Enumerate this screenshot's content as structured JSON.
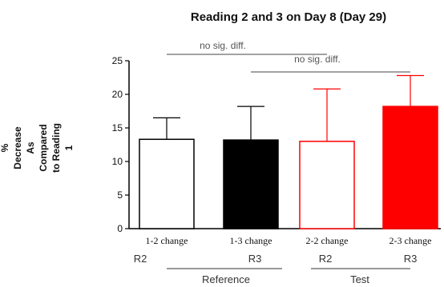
{
  "chart_data": {
    "type": "bar",
    "title": "Reading 2 and 3 on Day 8 (Day 29)",
    "ylabel_lines": [
      "%",
      "Decrease",
      "As",
      "Compared",
      "to Reading",
      "1"
    ],
    "ylim": [
      0,
      25
    ],
    "yticks": [
      0,
      5,
      10,
      15,
      20,
      25
    ],
    "categories": [
      "1-2 change",
      "1-3 change",
      "2-2 change",
      "2-3 change"
    ],
    "sublabels": [
      "R2",
      "R3",
      "R2",
      "R3"
    ],
    "values": [
      13.3,
      13.2,
      13.0,
      18.2
    ],
    "error_upper": [
      16.5,
      18.2,
      20.8,
      22.8
    ],
    "fill_colors": [
      "#ffffff",
      "#000000",
      "#ffffff",
      "#ff0000"
    ],
    "edge_colors": [
      "#000000",
      "#000000",
      "#ff0000",
      "#ff0000"
    ],
    "groups": [
      {
        "label": "Reference",
        "categories": [
          0,
          1
        ]
      },
      {
        "label": "Test",
        "categories": [
          2,
          3
        ]
      }
    ],
    "annotations": [
      {
        "text": "no sig. diff.",
        "from": 0,
        "to": 2
      },
      {
        "text": "no sig. diff.",
        "from": 1,
        "to": 3
      }
    ],
    "grid": false,
    "legend": false
  }
}
